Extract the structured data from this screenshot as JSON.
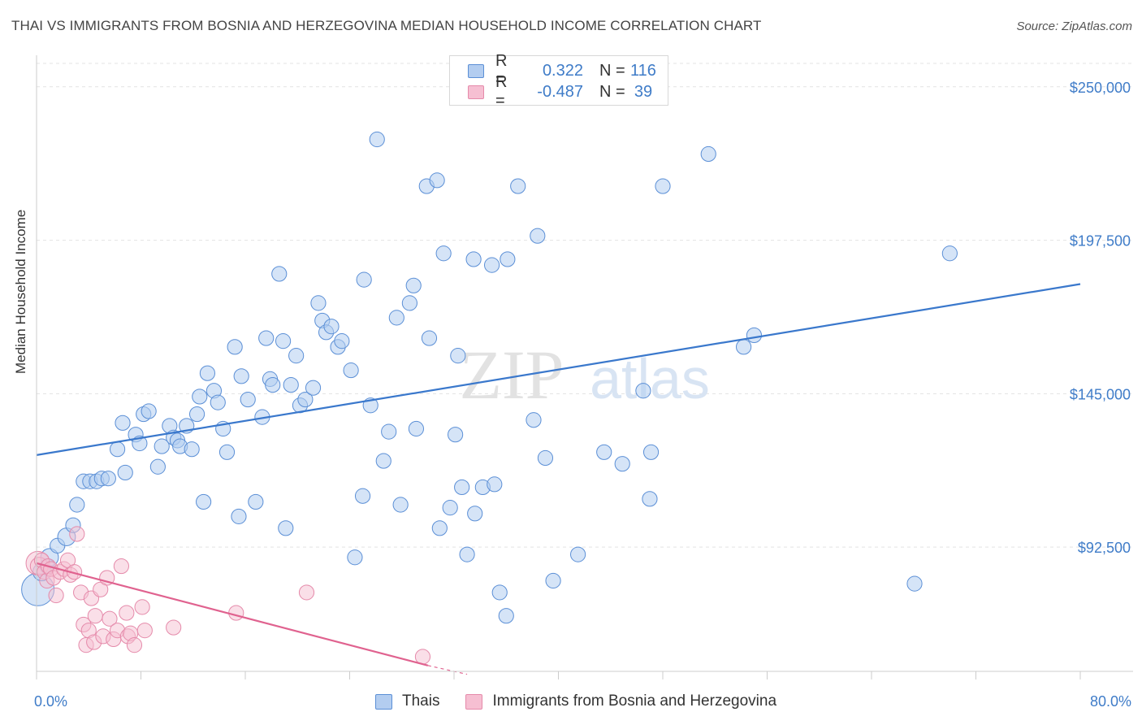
{
  "title": "THAI VS IMMIGRANTS FROM BOSNIA AND HERZEGOVINA MEDIAN HOUSEHOLD INCOME CORRELATION CHART",
  "source": "Source: ZipAtlas.com",
  "watermark": {
    "zip": "ZIP",
    "atlas": "atlas"
  },
  "legend_stats": [
    {
      "r_label": "R =",
      "r_value": "0.322",
      "n_label": "N =",
      "n_value": "116"
    },
    {
      "r_label": "R =",
      "r_value": "-0.487",
      "n_label": "N =",
      "n_value": "39"
    }
  ],
  "colors": {
    "thai_fill": "#b3cdf0",
    "thai_stroke": "#5b8fd6",
    "thai_line": "#3a78cc",
    "bosnia_fill": "#f6bfd2",
    "bosnia_stroke": "#e58aaa",
    "bosnia_line": "#e0628f",
    "axis_text": "#3f7cc8",
    "grid": "#e3e3e3"
  },
  "chart_data": {
    "type": "scatter",
    "title": "THAI VS IMMIGRANTS FROM BOSNIA AND HERZEGOVINA MEDIAN HOUSEHOLD INCOME CORRELATION CHART",
    "xlabel": "",
    "ylabel": "Median Household Income",
    "xlim": [
      0,
      80
    ],
    "ylim": [
      50000,
      258000
    ],
    "x_tick_labels": [
      "0.0%",
      "80.0%"
    ],
    "y_ticks": [
      92500,
      145000,
      197500,
      250000
    ],
    "y_tick_labels": [
      "$92,500",
      "$145,000",
      "$197,500",
      "$250,000"
    ],
    "grid": true,
    "legend_position": "bottom",
    "series": [
      {
        "name": "Thais",
        "r": 0.322,
        "n": 116,
        "trend": {
          "x": [
            0,
            80
          ],
          "y": [
            124000,
            182500
          ]
        },
        "points": [
          [
            0.1,
            78000,
            22
          ],
          [
            0.4,
            84000,
            12
          ],
          [
            0.8,
            86000,
            10
          ],
          [
            1.0,
            89000,
            12
          ],
          [
            1.6,
            93000,
            10
          ],
          [
            2.3,
            96000,
            12
          ],
          [
            2.8,
            100000,
            10
          ],
          [
            3.1,
            107000,
            10
          ],
          [
            3.6,
            115000,
            10
          ],
          [
            4.1,
            115000,
            10
          ],
          [
            4.6,
            115000,
            10
          ],
          [
            5.0,
            116000,
            10
          ],
          [
            5.5,
            116000,
            10
          ],
          [
            6.2,
            126000,
            10
          ],
          [
            6.8,
            118000,
            10
          ],
          [
            6.6,
            135000,
            10
          ],
          [
            7.6,
            131000,
            10
          ],
          [
            7.9,
            128000,
            10
          ],
          [
            8.2,
            138000,
            10
          ],
          [
            8.6,
            139000,
            10
          ],
          [
            9.3,
            120000,
            10
          ],
          [
            9.6,
            127000,
            10
          ],
          [
            10.2,
            134000,
            10
          ],
          [
            10.5,
            130000,
            10
          ],
          [
            10.8,
            129000,
            10
          ],
          [
            11.0,
            127000,
            10
          ],
          [
            11.5,
            134000,
            10
          ],
          [
            11.9,
            126000,
            10
          ],
          [
            12.3,
            138000,
            10
          ],
          [
            12.5,
            144000,
            10
          ],
          [
            12.8,
            108000,
            10
          ],
          [
            13.1,
            152000,
            10
          ],
          [
            13.6,
            146000,
            10
          ],
          [
            13.9,
            142000,
            10
          ],
          [
            14.3,
            133000,
            10
          ],
          [
            14.6,
            125000,
            10
          ],
          [
            15.2,
            161000,
            10
          ],
          [
            15.5,
            103000,
            10
          ],
          [
            15.7,
            151000,
            10
          ],
          [
            16.2,
            143000,
            10
          ],
          [
            16.8,
            108000,
            10
          ],
          [
            17.3,
            137000,
            10
          ],
          [
            17.6,
            164000,
            10
          ],
          [
            17.9,
            150000,
            10
          ],
          [
            18.1,
            148000,
            10
          ],
          [
            18.6,
            186000,
            10
          ],
          [
            18.9,
            163000,
            10
          ],
          [
            19.1,
            99000,
            10
          ],
          [
            19.5,
            148000,
            10
          ],
          [
            19.9,
            158000,
            10
          ],
          [
            20.2,
            141000,
            10
          ],
          [
            20.6,
            143000,
            10
          ],
          [
            21.2,
            147000,
            10
          ],
          [
            21.6,
            176000,
            10
          ],
          [
            21.9,
            170000,
            10
          ],
          [
            22.2,
            166000,
            10
          ],
          [
            22.6,
            168000,
            10
          ],
          [
            23.1,
            161000,
            10
          ],
          [
            23.4,
            163000,
            10
          ],
          [
            24.1,
            153000,
            10
          ],
          [
            24.4,
            89000,
            10
          ],
          [
            25.1,
            184000,
            10
          ],
          [
            25.0,
            110000,
            10
          ],
          [
            25.6,
            141000,
            10
          ],
          [
            26.1,
            232000,
            10
          ],
          [
            26.6,
            122000,
            10
          ],
          [
            27.0,
            132000,
            10
          ],
          [
            27.6,
            171000,
            10
          ],
          [
            27.9,
            107000,
            10
          ],
          [
            28.6,
            176000,
            10
          ],
          [
            28.9,
            182000,
            10
          ],
          [
            29.1,
            133000,
            10
          ],
          [
            29.9,
            216000,
            10
          ],
          [
            30.1,
            164000,
            10
          ],
          [
            30.7,
            218000,
            10
          ],
          [
            30.9,
            99000,
            10
          ],
          [
            31.2,
            193000,
            10
          ],
          [
            31.7,
            106000,
            10
          ],
          [
            32.1,
            131000,
            10
          ],
          [
            32.3,
            158000,
            10
          ],
          [
            32.6,
            113000,
            10
          ],
          [
            33.0,
            90000,
            10
          ],
          [
            33.5,
            191000,
            10
          ],
          [
            33.6,
            104000,
            10
          ],
          [
            34.2,
            113000,
            10
          ],
          [
            34.9,
            189000,
            10
          ],
          [
            35.1,
            114000,
            10
          ],
          [
            35.5,
            77000,
            10
          ],
          [
            36.0,
            69000,
            10
          ],
          [
            36.1,
            191000,
            10
          ],
          [
            36.9,
            216000,
            10
          ],
          [
            38.1,
            136000,
            10
          ],
          [
            38.4,
            199000,
            10
          ],
          [
            39.0,
            123000,
            10
          ],
          [
            39.6,
            81000,
            10
          ],
          [
            41.5,
            90000,
            10
          ],
          [
            43.5,
            125000,
            10
          ],
          [
            44.9,
            121000,
            10
          ],
          [
            46.5,
            146000,
            10
          ],
          [
            47.1,
            125000,
            10
          ],
          [
            47.0,
            109000,
            10
          ],
          [
            48.0,
            216000,
            10
          ],
          [
            51.5,
            227000,
            10
          ],
          [
            54.2,
            161000,
            10
          ],
          [
            55.0,
            165000,
            10
          ],
          [
            67.3,
            80000,
            10
          ],
          [
            70.0,
            193000,
            10
          ]
        ]
      },
      {
        "name": "Immigrants from Bosnia and Herzegovina",
        "r": -0.487,
        "n": 39,
        "trend": {
          "x": [
            0,
            30
          ],
          "y": [
            87000,
            52000
          ]
        },
        "dash": {
          "x": [
            30,
            33
          ],
          "y": [
            52000,
            49000
          ]
        },
        "points": [
          [
            0.1,
            87000,
            16
          ],
          [
            0.2,
            86000,
            12
          ],
          [
            0.4,
            88000,
            10
          ],
          [
            0.6,
            84000,
            10
          ],
          [
            0.8,
            81000,
            10
          ],
          [
            0.9,
            86000,
            10
          ],
          [
            1.1,
            85000,
            10
          ],
          [
            1.3,
            82000,
            10
          ],
          [
            1.5,
            76000,
            10
          ],
          [
            1.8,
            84000,
            10
          ],
          [
            2.1,
            85000,
            10
          ],
          [
            2.4,
            88000,
            10
          ],
          [
            2.6,
            83000,
            10
          ],
          [
            2.9,
            84000,
            10
          ],
          [
            3.1,
            97000,
            10
          ],
          [
            3.4,
            77000,
            10
          ],
          [
            3.6,
            66000,
            10
          ],
          [
            3.8,
            59000,
            10
          ],
          [
            4.0,
            64000,
            10
          ],
          [
            4.2,
            75000,
            10
          ],
          [
            4.4,
            60000,
            10
          ],
          [
            4.5,
            69000,
            10
          ],
          [
            4.9,
            78000,
            10
          ],
          [
            5.1,
            62000,
            10
          ],
          [
            5.4,
            82000,
            10
          ],
          [
            5.6,
            68000,
            10
          ],
          [
            5.9,
            61000,
            10
          ],
          [
            6.2,
            64000,
            10
          ],
          [
            6.5,
            86000,
            10
          ],
          [
            6.9,
            70000,
            10
          ],
          [
            7.0,
            62000,
            10
          ],
          [
            7.2,
            63000,
            10
          ],
          [
            7.5,
            59000,
            10
          ],
          [
            8.1,
            72000,
            10
          ],
          [
            8.3,
            64000,
            10
          ],
          [
            10.5,
            65000,
            10
          ],
          [
            15.3,
            70000,
            10
          ],
          [
            20.7,
            77000,
            10
          ],
          [
            29.6,
            55000,
            10
          ]
        ]
      }
    ]
  }
}
